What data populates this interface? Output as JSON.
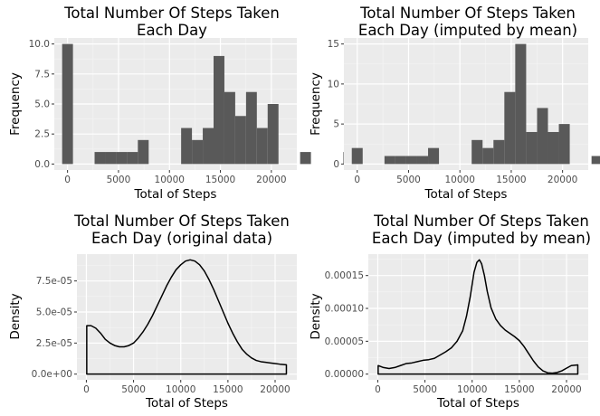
{
  "chart_data": [
    {
      "type": "bar",
      "title": [
        "Total Number Of Steps Taken",
        "Each Day"
      ],
      "xlabel": "Total of Steps",
      "ylabel": "Frequency",
      "bin_width": 1061.5,
      "x_start": 0,
      "values": [
        10,
        0,
        0,
        1,
        1,
        1,
        1,
        2,
        0,
        0,
        0,
        3,
        2,
        3,
        9,
        6,
        4,
        6,
        3,
        5,
        0,
        0,
        1,
        0,
        0,
        0,
        1,
        1
      ],
      "xlim": [
        -1300,
        22500
      ],
      "ylim": [
        -0.5,
        10.5
      ],
      "xticks": [
        0,
        5000,
        10000,
        15000,
        20000
      ],
      "yticks": [
        0,
        2.5,
        5,
        7.5,
        10
      ],
      "xtick_labels": [
        "0",
        "5000",
        "10000",
        "15000",
        "20000"
      ],
      "ytick_labels": [
        "0.0",
        "2.5",
        "5.0",
        "7.5",
        "10.0"
      ],
      "bar_color": "#595959",
      "grid": true
    },
    {
      "type": "bar",
      "title": [
        "Total Number Of Steps Taken",
        "Each Day (imputed by mean)"
      ],
      "xlabel": "Total of Steps",
      "ylabel": "Frequency",
      "bin_width": 1061.5,
      "x_start": 0,
      "values": [
        2,
        0,
        0,
        1,
        1,
        1,
        1,
        2,
        0,
        0,
        0,
        3,
        2,
        3,
        9,
        15,
        4,
        7,
        4,
        5,
        0,
        0,
        1,
        0,
        0,
        0,
        1,
        1
      ],
      "xlim": [
        -1300,
        22500
      ],
      "ylim": [
        -0.75,
        15.75
      ],
      "xticks": [
        0,
        5000,
        10000,
        15000,
        20000
      ],
      "yticks": [
        0,
        5,
        10,
        15
      ],
      "xtick_labels": [
        "0",
        "5000",
        "10000",
        "15000",
        "20000"
      ],
      "ytick_labels": [
        "0",
        "5",
        "10",
        "15"
      ],
      "bar_color": "#595959",
      "grid": true
    },
    {
      "type": "area",
      "title": [
        "Total Number Of Steps Taken",
        "Each Day (original data)"
      ],
      "xlabel": "Total of Steps",
      "ylabel": "Density",
      "x": [
        41,
        500,
        1000,
        1500,
        2000,
        2500,
        3000,
        3500,
        4000,
        4500,
        5000,
        5500,
        6000,
        6500,
        7000,
        7500,
        8000,
        8500,
        9000,
        9500,
        10000,
        10500,
        11000,
        11500,
        12000,
        12500,
        13000,
        13500,
        14000,
        14500,
        15000,
        15500,
        16000,
        16500,
        17000,
        17500,
        18000,
        18500,
        19000,
        19500,
        20000,
        20500,
        21194
      ],
      "y": [
        3.9e-05,
        3.9e-05,
        3.7e-05,
        3.3e-05,
        2.8e-05,
        2.5e-05,
        2.3e-05,
        2.2e-05,
        2.2e-05,
        2.3e-05,
        2.5e-05,
        2.9e-05,
        3.4e-05,
        4e-05,
        4.7e-05,
        5.5e-05,
        6.3e-05,
        7.1e-05,
        7.8e-05,
        8.4e-05,
        8.8e-05,
        9.1e-05,
        9.2e-05,
        9.1e-05,
        8.8e-05,
        8.3e-05,
        7.6e-05,
        6.8e-05,
        5.9e-05,
        5e-05,
        4.1e-05,
        3.3e-05,
        2.6e-05,
        2e-05,
        1.6e-05,
        1.3e-05,
        1.1e-05,
        1e-05,
        9.5e-06,
        9e-06,
        8.5e-06,
        8e-06,
        7.5e-06
      ],
      "xlim": [
        -1000,
        22300
      ],
      "ylim": [
        -4.6e-06,
        9.66e-05
      ],
      "xticks": [
        0,
        5000,
        10000,
        15000,
        20000
      ],
      "yticks": [
        0,
        2.5e-05,
        5e-05,
        7.5e-05
      ],
      "xtick_labels": [
        "0",
        "5000",
        "10000",
        "15000",
        "20000"
      ],
      "ytick_labels": [
        "0.0e+00",
        "2.5e-05",
        "5.0e-05",
        "7.5e-05"
      ],
      "line_color": "#000000",
      "grid": true
    },
    {
      "type": "area",
      "title": [
        "Total Number Of Steps Taken",
        "Each Day (imputed by mean)"
      ],
      "xlabel": "Total of Steps",
      "ylabel": "Density",
      "x": [
        41,
        600,
        1200,
        1800,
        2400,
        3000,
        3600,
        4200,
        4800,
        5400,
        6000,
        6600,
        7200,
        7800,
        8400,
        9000,
        9400,
        9800,
        10200,
        10500,
        10766,
        11000,
        11300,
        11600,
        12000,
        12500,
        13000,
        13500,
        14000,
        14500,
        15000,
        15500,
        16000,
        16500,
        17000,
        17500,
        18000,
        18500,
        19000,
        19500,
        20000,
        20500,
        21194
      ],
      "y": [
        1.3e-05,
        1e-05,
        8.5e-06,
        1e-05,
        1.3e-05,
        1.6e-05,
        1.7e-05,
        1.9e-05,
        2.1e-05,
        2.2e-05,
        2.4e-05,
        2.9e-05,
        3.4e-05,
        4e-05,
        5e-05,
        6.6e-05,
        8.8e-05,
        0.000118,
        0.000155,
        0.00017,
        0.000174,
        0.000168,
        0.00015,
        0.000126,
        0.000101,
        8.4e-05,
        7.4e-05,
        6.7e-05,
        6.2e-05,
        5.7e-05,
        5.1e-05,
        4.2e-05,
        3.1e-05,
        2e-05,
        1.1e-05,
        5e-06,
        2e-06,
        1.5e-06,
        2.5e-06,
        5e-06,
        9e-06,
        1.3e-05,
        1.4e-05
      ],
      "xlim": [
        -1000,
        22300
      ],
      "ylim": [
        -8.7e-06,
        0.0001826
      ],
      "xticks": [
        0,
        5000,
        10000,
        15000,
        20000
      ],
      "yticks": [
        0,
        5e-05,
        0.0001,
        0.00015
      ],
      "xtick_labels": [
        "0",
        "5000",
        "10000",
        "15000",
        "20000"
      ],
      "ytick_labels": [
        "0.00000",
        "0.00005",
        "0.00010",
        "0.00015"
      ],
      "line_color": "#000000",
      "grid": true
    }
  ]
}
